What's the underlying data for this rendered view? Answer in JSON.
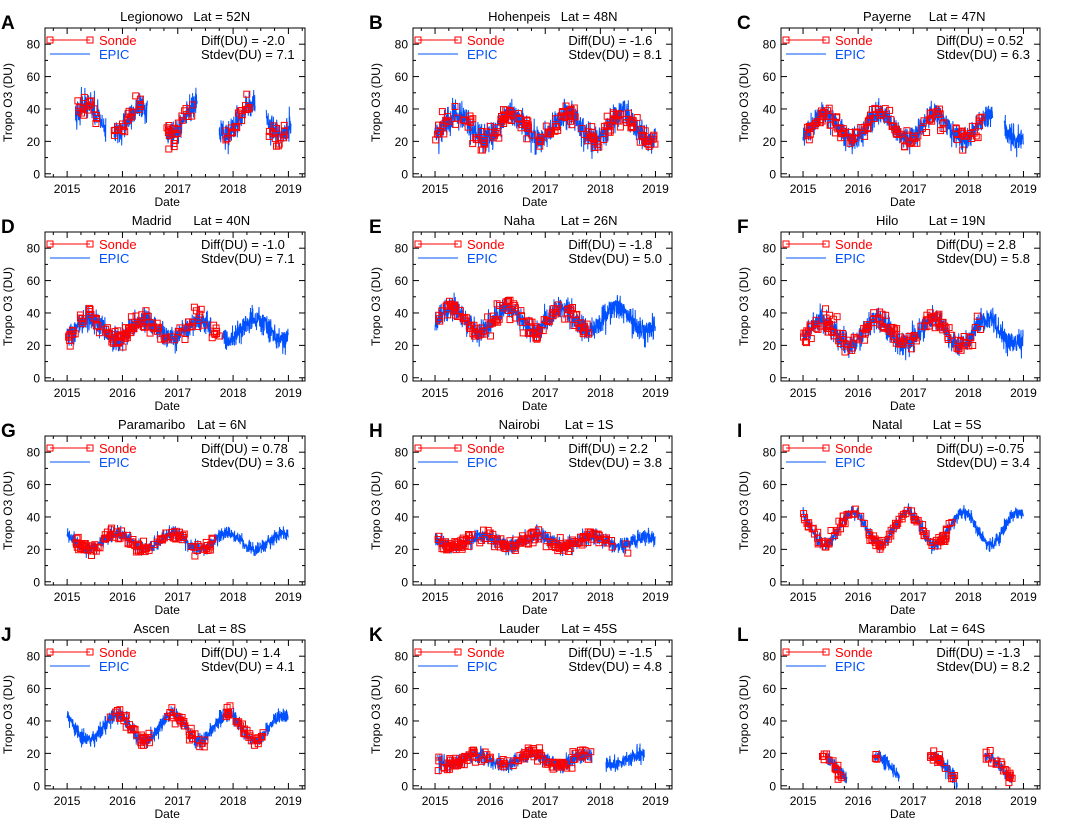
{
  "figure": {
    "y_label": "Tropo O3 (DU)",
    "x_label": "Date",
    "legend": {
      "sonde": "Sonde",
      "epic": "EPIC"
    },
    "colors": {
      "sonde": "#ff0000",
      "epic": "#0050ff",
      "axis": "#000000"
    },
    "x_range": [
      2014.6,
      2019.3
    ],
    "y_range": [
      -2,
      90
    ],
    "x_ticks": [
      2015,
      2016,
      2017,
      2018,
      2019
    ],
    "y_ticks": [
      0,
      20,
      40,
      60,
      80
    ]
  },
  "chart_data": [
    {
      "letter": "A",
      "station": "Legionowo",
      "lat": "Lat = 52N",
      "diff": "Diff(DU) = -2.0",
      "stdev": "Stdev(DU) =  7.1",
      "type": "scatter+line",
      "epic_segments": [
        [
          2015.15,
          2015.7
        ],
        [
          2015.85,
          2016.45
        ],
        [
          2016.8,
          2017.35
        ],
        [
          2017.75,
          2018.4
        ],
        [
          2018.6,
          2019.05
        ]
      ],
      "sonde_segments": [
        [
          2015.15,
          2015.55
        ],
        [
          2015.85,
          2016.35
        ],
        [
          2016.8,
          2017.35
        ],
        [
          2017.85,
          2018.3
        ],
        [
          2018.65,
          2019.0
        ]
      ],
      "series_model": {
        "mean": 33,
        "amplitude": 9,
        "peak_fraction": 0.35,
        "noise": 7
      }
    },
    {
      "letter": "B",
      "station": "Hohenpeis",
      "lat": "Lat = 48N",
      "diff": "Diff(DU) = -1.6",
      "stdev": "Stdev(DU) =  8.1",
      "type": "scatter+line",
      "epic_segments": [
        [
          2015.0,
          2019.0
        ]
      ],
      "sonde_segments": [
        [
          2015.0,
          2019.0
        ]
      ],
      "series_model": {
        "mean": 29,
        "amplitude": 8,
        "peak_fraction": 0.4,
        "noise": 7
      }
    },
    {
      "letter": "C",
      "station": "Payerne",
      "lat": "Lat = 47N",
      "diff": "Diff(DU) = 0.52",
      "stdev": "Stdev(DU) =  6.3",
      "type": "scatter+line",
      "epic_segments": [
        [
          2015.0,
          2018.45
        ],
        [
          2018.65,
          2019.0
        ]
      ],
      "sonde_segments": [
        [
          2015.0,
          2017.55
        ],
        [
          2017.75,
          2018.25
        ]
      ],
      "series_model": {
        "mean": 29,
        "amplitude": 8,
        "peak_fraction": 0.4,
        "noise": 6
      }
    },
    {
      "letter": "D",
      "station": "Madrid",
      "lat": "Lat = 40N",
      "diff": "Diff(DU) = -1.0",
      "stdev": "Stdev(DU) =  7.1",
      "type": "scatter+line",
      "epic_segments": [
        [
          2015.0,
          2017.6
        ],
        [
          2017.8,
          2019.0
        ]
      ],
      "sonde_segments": [
        [
          2015.0,
          2017.5
        ],
        [
          2017.6,
          2017.8
        ]
      ],
      "series_model": {
        "mean": 30,
        "amplitude": 6,
        "peak_fraction": 0.4,
        "noise": 6
      }
    },
    {
      "letter": "E",
      "station": "Naha",
      "lat": "Lat = 26N",
      "diff": "Diff(DU) = -1.8",
      "stdev": "Stdev(DU) =  5.0",
      "type": "scatter+line",
      "epic_segments": [
        [
          2015.0,
          2019.0
        ]
      ],
      "sonde_segments": [
        [
          2015.0,
          2017.8
        ]
      ],
      "series_model": {
        "mean": 36,
        "amplitude": 7,
        "peak_fraction": 0.3,
        "noise": 6
      }
    },
    {
      "letter": "F",
      "station": "Hilo",
      "lat": "Lat = 19N",
      "diff": "Diff(DU) =  2.8",
      "stdev": "Stdev(DU) =  5.8",
      "type": "scatter+line",
      "epic_segments": [
        [
          2015.0,
          2019.0
        ]
      ],
      "sonde_segments": [
        [
          2015.0,
          2018.25
        ]
      ],
      "series_model": {
        "mean": 28,
        "amplitude": 8,
        "peak_fraction": 0.35,
        "noise": 6
      }
    },
    {
      "letter": "G",
      "station": "Paramaribo",
      "lat": "Lat = 6N",
      "diff": "Diff(DU) = 0.78",
      "stdev": "Stdev(DU) =  3.6",
      "type": "scatter+line",
      "epic_segments": [
        [
          2015.0,
          2019.0
        ]
      ],
      "sonde_segments": [
        [
          2015.0,
          2017.65
        ]
      ],
      "series_model": {
        "mean": 25,
        "amplitude": 5,
        "peak_fraction": 0.9,
        "noise": 3.5
      }
    },
    {
      "letter": "H",
      "station": "Nairobi",
      "lat": "Lat = 1S",
      "diff": "Diff(DU) =  2.2",
      "stdev": "Stdev(DU) =  3.8",
      "type": "scatter+line",
      "epic_segments": [
        [
          2015.0,
          2019.0
        ]
      ],
      "sonde_segments": [
        [
          2015.0,
          2018.55
        ]
      ],
      "series_model": {
        "mean": 25,
        "amplitude": 3,
        "peak_fraction": 0.85,
        "noise": 4
      }
    },
    {
      "letter": "I",
      "station": "Natal",
      "lat": "Lat = 5S",
      "diff": "Diff(DU) =-0.75",
      "stdev": "Stdev(DU) =  3.4",
      "type": "scatter+line",
      "epic_segments": [
        [
          2015.0,
          2019.0
        ]
      ],
      "sonde_segments": [
        [
          2015.0,
          2017.7
        ]
      ],
      "series_model": {
        "mean": 33,
        "amplitude": 10,
        "peak_fraction": 0.9,
        "noise": 3.5
      }
    },
    {
      "letter": "J",
      "station": "Ascen",
      "lat": "Lat = 8S",
      "diff": "Diff(DU) =  1.4",
      "stdev": "Stdev(DU) =  4.1",
      "type": "scatter+line",
      "epic_segments": [
        [
          2015.0,
          2019.0
        ]
      ],
      "sonde_segments": [
        [
          2015.75,
          2016.5
        ],
        [
          2016.8,
          2017.5
        ],
        [
          2017.8,
          2018.55
        ]
      ],
      "series_model": {
        "mean": 36,
        "amplitude": 8,
        "peak_fraction": 0.9,
        "noise": 4
      }
    },
    {
      "letter": "K",
      "station": "Lauder",
      "lat": "Lat = 45S",
      "diff": "Diff(DU) = -1.5",
      "stdev": "Stdev(DU) =  4.8",
      "type": "scatter+line",
      "epic_segments": [
        [
          2015.05,
          2017.85
        ],
        [
          2018.1,
          2018.8
        ]
      ],
      "sonde_segments": [
        [
          2015.05,
          2017.85
        ]
      ],
      "series_model": {
        "mean": 16,
        "amplitude": 3,
        "peak_fraction": 0.75,
        "noise": 4
      }
    },
    {
      "letter": "L",
      "station": "Marambio",
      "lat": "Lat = 64S",
      "diff": "Diff(DU) = -1.3",
      "stdev": "Stdev(DU) =  8.2",
      "type": "scatter+line",
      "epic_segments": [
        [
          2015.45,
          2015.8
        ],
        [
          2016.3,
          2016.75
        ],
        [
          2017.3,
          2017.8
        ],
        [
          2018.3,
          2018.8
        ]
      ],
      "sonde_segments": [
        [
          2015.35,
          2015.75
        ],
        [
          2016.3,
          2016.4
        ],
        [
          2017.3,
          2017.75
        ],
        [
          2018.3,
          2018.8
        ]
      ],
      "series_model": {
        "mean": 11,
        "amplitude": 7,
        "peak_fraction": 0.35,
        "noise": 4
      }
    }
  ]
}
